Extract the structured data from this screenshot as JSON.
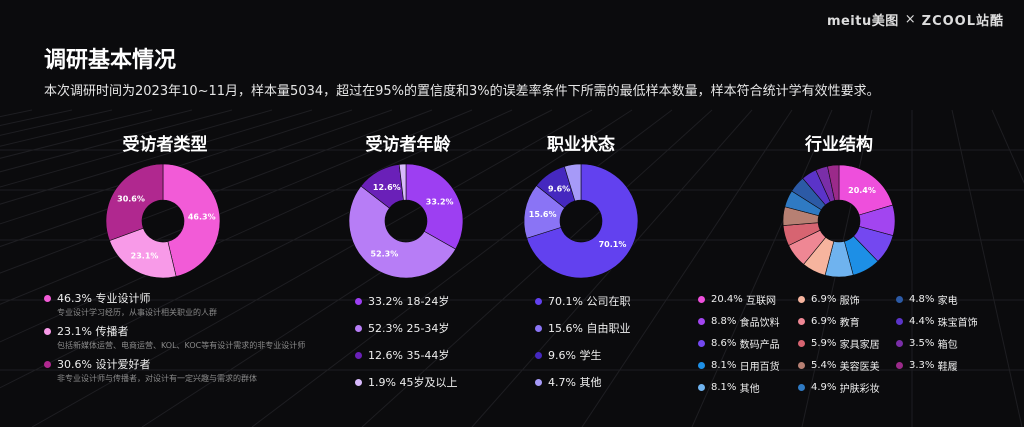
{
  "brand": {
    "logo1": "meitu美图",
    "sep": "×",
    "logo2": "ZCOOL站酷"
  },
  "header": {
    "title": "调研基本情况",
    "subtitle": "本次调研时间为2023年10~11月，样本量5034，超过在95%的置信度和3%的误差率条件下所需的最低样本数量，样本符合统计学有效性要求。"
  },
  "chart_data": [
    {
      "type": "pie",
      "title": "受访者类型",
      "categories": [
        "专业设计师",
        "传播者",
        "设计爱好者"
      ],
      "values": [
        46.3,
        23.1,
        30.6
      ],
      "labels": [
        "46.3%",
        "23.1%",
        "30.6%"
      ],
      "colors": [
        "#f25bd7",
        "#f89ae8",
        "#b0288f"
      ],
      "descriptions": [
        "专业设计学习经历，从事设计相关职业的人群",
        "包括新媒体运营、电商运营、KOL、KOC等有设计需求的非专业设计师",
        "非专业设计师与传播者，对设计有一定兴趣与需求的群体"
      ]
    },
    {
      "type": "pie",
      "title": "受访者年龄",
      "categories": [
        "18-24岁",
        "25-34岁",
        "35-44岁",
        "45岁及以上"
      ],
      "values": [
        33.2,
        52.3,
        12.6,
        1.9
      ],
      "labels": [
        "33.2%",
        "52.3%",
        "12.6%",
        ""
      ],
      "colors": [
        "#9d3ff2",
        "#b77df6",
        "#6a20b8",
        "#d7b9fb"
      ]
    },
    {
      "type": "pie",
      "title": "职业状态",
      "categories": [
        "公司在职",
        "自由职业",
        "学生",
        "其他"
      ],
      "values": [
        70.1,
        15.6,
        9.6,
        4.7
      ],
      "labels": [
        "70.1%",
        "15.6%",
        "9.6%",
        ""
      ],
      "colors": [
        "#6241ef",
        "#8a74f5",
        "#4528bf",
        "#a69af8"
      ]
    },
    {
      "type": "pie",
      "title": "行业结构",
      "categories": [
        "互联网",
        "食品饮料",
        "数码产品",
        "日用百货",
        "其他",
        "服饰",
        "教育",
        "家具家居",
        "美容医美",
        "护肤彩妆",
        "家电",
        "珠宝首饰",
        "箱包",
        "鞋履"
      ],
      "values": [
        20.4,
        8.8,
        8.6,
        8.1,
        8.1,
        6.9,
        6.9,
        5.9,
        5.4,
        4.9,
        4.8,
        4.4,
        3.5,
        3.3
      ],
      "labels": [
        "20.4%",
        "",
        "",
        "",
        "",
        "",
        "",
        "",
        "",
        "",
        "",
        "",
        "",
        ""
      ],
      "colors": [
        "#ee4fdc",
        "#a245f0",
        "#7448f0",
        "#1d8fe6",
        "#6fb3ef",
        "#f6b49e",
        "#ef8794",
        "#d76471",
        "#b78073",
        "#2f7ac3",
        "#2c5aa6",
        "#5b34c9",
        "#7a2ea8",
        "#9b2a8a"
      ]
    }
  ],
  "legends": {
    "type": [
      {
        "pct": "46.3%",
        "label": "专业设计师",
        "desc": "专业设计学习经历，从事设计相关职业的人群"
      },
      {
        "pct": "23.1%",
        "label": "传播者",
        "desc": "包括新媒体运营、电商运营、KOL、KOC等有设计需求的非专业设计师"
      },
      {
        "pct": "30.6%",
        "label": "设计爱好者",
        "desc": "非专业设计师与传播者，对设计有一定兴趣与需求的群体"
      }
    ],
    "age": [
      {
        "pct": "33.2%",
        "label": "18-24岁"
      },
      {
        "pct": "52.3%",
        "label": "25-34岁"
      },
      {
        "pct": "12.6%",
        "label": "35-44岁"
      },
      {
        "pct": "1.9%",
        "label": "45岁及以上"
      }
    ],
    "job": [
      {
        "pct": "70.1%",
        "label": "公司在职"
      },
      {
        "pct": "15.6%",
        "label": "自由职业"
      },
      {
        "pct": "9.6%",
        "label": "学生"
      },
      {
        "pct": "4.7%",
        "label": "其他"
      }
    ],
    "industry": [
      {
        "pct": "20.4%",
        "label": "互联网",
        "color": "#ee4fdc"
      },
      {
        "pct": "6.9%",
        "label": "服饰",
        "color": "#f6b49e"
      },
      {
        "pct": "4.8%",
        "label": "家电",
        "color": "#2c5aa6"
      },
      {
        "pct": "8.8%",
        "label": "食品饮料",
        "color": "#a245f0"
      },
      {
        "pct": "6.9%",
        "label": "教育",
        "color": "#ef8794"
      },
      {
        "pct": "4.4%",
        "label": "珠宝首饰",
        "color": "#5b34c9"
      },
      {
        "pct": "8.6%",
        "label": "数码产品",
        "color": "#7448f0"
      },
      {
        "pct": "5.9%",
        "label": "家具家居",
        "color": "#d76471"
      },
      {
        "pct": "3.5%",
        "label": "箱包",
        "color": "#7a2ea8"
      },
      {
        "pct": "8.1%",
        "label": "日用百货",
        "color": "#1d8fe6"
      },
      {
        "pct": "5.4%",
        "label": "美容医美",
        "color": "#b78073"
      },
      {
        "pct": "3.3%",
        "label": "鞋履",
        "color": "#9b2a8a"
      },
      {
        "pct": "8.1%",
        "label": "其他",
        "color": "#6fb3ef"
      },
      {
        "pct": "4.9%",
        "label": "护肤彩妆",
        "color": "#2f7ac3"
      }
    ]
  }
}
